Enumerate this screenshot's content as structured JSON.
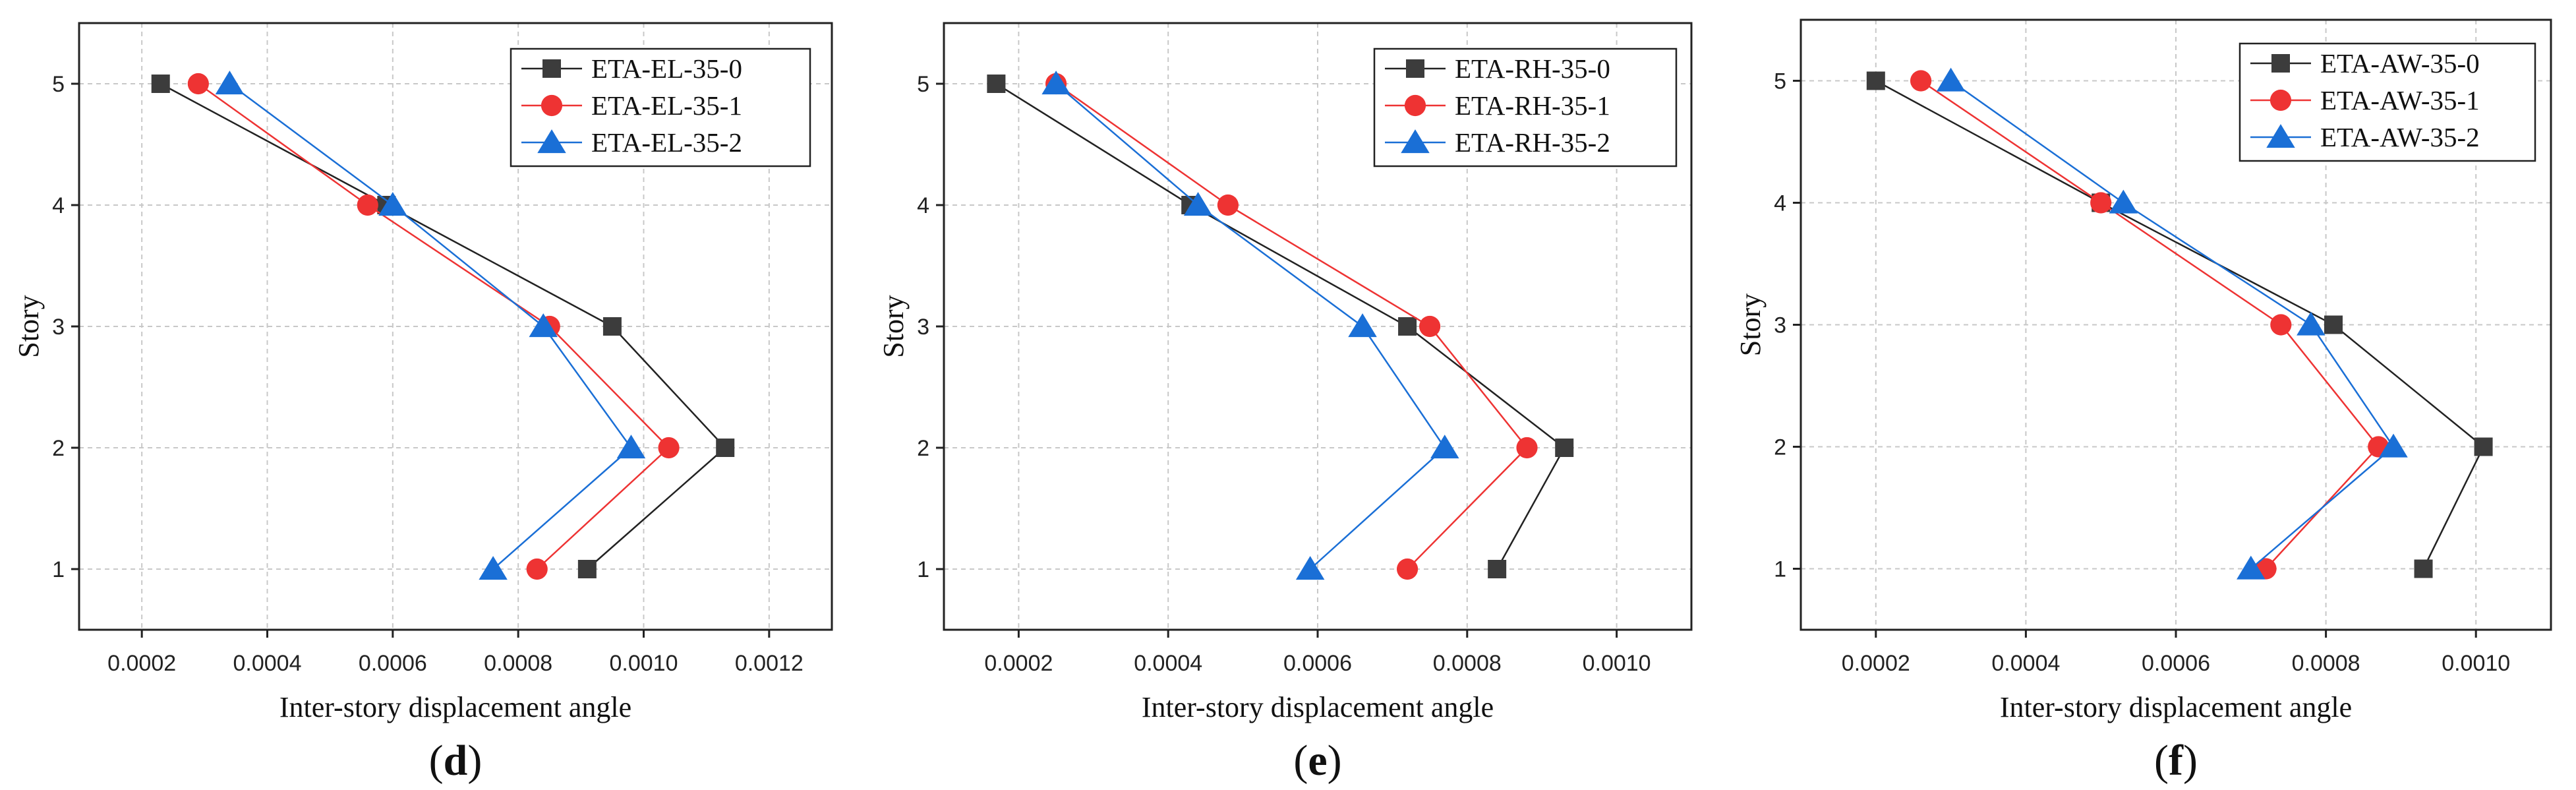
{
  "figure": {
    "colors": {
      "axis": "#222222",
      "grid": "#c8c8c8"
    }
  },
  "chart_data": [
    {
      "type": "line",
      "panel_label": "d",
      "xlabel": "Inter-story displacement angle",
      "ylabel": "Story",
      "xlim": [
        0.0001,
        0.0013
      ],
      "ylim": [
        0.5,
        5.5
      ],
      "xticks": [
        "0.0002",
        "0.0004",
        "0.0006",
        "0.0008",
        "0.0010",
        "0.0012"
      ],
      "yticks": [
        "1",
        "2",
        "3",
        "4",
        "5"
      ],
      "grid": true,
      "legend": "top-right",
      "series": [
        {
          "name": "ETA-EL-35-0",
          "color": "#3c3c3c",
          "marker": "square",
          "line_color": "#222222",
          "points": [
            [
              0.00091,
              1
            ],
            [
              0.00113,
              2
            ],
            [
              0.00095,
              3
            ],
            [
              0.00059,
              4
            ],
            [
              0.00023,
              5
            ]
          ]
        },
        {
          "name": "ETA-EL-35-1",
          "color": "#ee3333",
          "marker": "circle",
          "line_color": "#ee3333",
          "points": [
            [
              0.00083,
              1
            ],
            [
              0.00104,
              2
            ],
            [
              0.00085,
              3
            ],
            [
              0.00056,
              4
            ],
            [
              0.00029,
              5
            ]
          ]
        },
        {
          "name": "ETA-EL-35-2",
          "color": "#1a6fd6",
          "marker": "triangle",
          "line_color": "#1a6fd6",
          "points": [
            [
              0.00076,
              1
            ],
            [
              0.00098,
              2
            ],
            [
              0.00084,
              3
            ],
            [
              0.0006,
              4
            ],
            [
              0.00034,
              5
            ]
          ]
        }
      ]
    },
    {
      "type": "line",
      "panel_label": "e",
      "xlabel": "Inter-story displacement angle",
      "ylabel": "Story",
      "xlim": [
        0.0001,
        0.0011
      ],
      "ylim": [
        0.5,
        5.5
      ],
      "xticks": [
        "0.0002",
        "0.0004",
        "0.0006",
        "0.0008",
        "0.0010"
      ],
      "yticks": [
        "1",
        "2",
        "3",
        "4",
        "5"
      ],
      "grid": true,
      "legend": "top-right",
      "series": [
        {
          "name": "ETA-RH-35-0",
          "color": "#3c3c3c",
          "marker": "square",
          "line_color": "#222222",
          "points": [
            [
              0.00084,
              1
            ],
            [
              0.00093,
              2
            ],
            [
              0.00072,
              3
            ],
            [
              0.00043,
              4
            ],
            [
              0.00017,
              5
            ]
          ]
        },
        {
          "name": "ETA-RH-35-1",
          "color": "#ee3333",
          "marker": "circle",
          "line_color": "#ee3333",
          "points": [
            [
              0.00072,
              1
            ],
            [
              0.00088,
              2
            ],
            [
              0.00075,
              3
            ],
            [
              0.00048,
              4
            ],
            [
              0.00025,
              5
            ]
          ]
        },
        {
          "name": "ETA-RH-35-2",
          "color": "#1a6fd6",
          "marker": "triangle",
          "line_color": "#1a6fd6",
          "points": [
            [
              0.00059,
              1
            ],
            [
              0.00077,
              2
            ],
            [
              0.00066,
              3
            ],
            [
              0.00044,
              4
            ],
            [
              0.00025,
              5
            ]
          ]
        }
      ]
    },
    {
      "type": "line",
      "panel_label": "f",
      "xlabel": "Inter-story displacement angle",
      "ylabel": "Story",
      "xlim": [
        0.0001,
        0.0011
      ],
      "ylim": [
        0.5,
        5.5
      ],
      "xticks": [
        "0.0002",
        "0.0004",
        "0.0006",
        "0.0008",
        "0.0010"
      ],
      "yticks": [
        "1",
        "2",
        "3",
        "4",
        "5"
      ],
      "grid": true,
      "legend": "top-right",
      "series": [
        {
          "name": "ETA-AW-35-0",
          "color": "#3c3c3c",
          "marker": "square",
          "line_color": "#222222",
          "points": [
            [
              0.00093,
              1
            ],
            [
              0.00101,
              2
            ],
            [
              0.00081,
              3
            ],
            [
              0.0005,
              4
            ],
            [
              0.0002,
              5
            ]
          ]
        },
        {
          "name": "ETA-AW-35-1",
          "color": "#ee3333",
          "marker": "circle",
          "line_color": "#ee3333",
          "points": [
            [
              0.00072,
              1
            ],
            [
              0.00087,
              2
            ],
            [
              0.00074,
              3
            ],
            [
              0.0005,
              4
            ],
            [
              0.00026,
              5
            ]
          ]
        },
        {
          "name": "ETA-AW-35-2",
          "color": "#1a6fd6",
          "marker": "triangle",
          "line_color": "#1a6fd6",
          "points": [
            [
              0.0007,
              1
            ],
            [
              0.00089,
              2
            ],
            [
              0.00078,
              3
            ],
            [
              0.00053,
              4
            ],
            [
              0.0003,
              5
            ]
          ]
        }
      ]
    }
  ]
}
